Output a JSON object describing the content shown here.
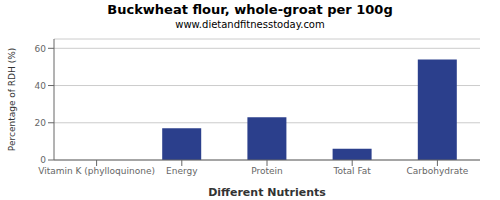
{
  "chart_data": {
    "type": "bar",
    "title": "Buckwheat flour, whole-groat per 100g",
    "subtitle": "www.dietandfitnesstoday.com",
    "xlabel": "Different Nutrients",
    "ylabel": "Percentage of RDH (%)",
    "categories": [
      "Vitamin K (phylloquinone)",
      "Energy",
      "Protein",
      "Total Fat",
      "Carbohydrate"
    ],
    "values": [
      0,
      17,
      23,
      6,
      54
    ],
    "color": "#2b3f8c",
    "ylim": [
      0,
      65
    ],
    "yticks": [
      0,
      20,
      40,
      60
    ],
    "grid": true
  }
}
